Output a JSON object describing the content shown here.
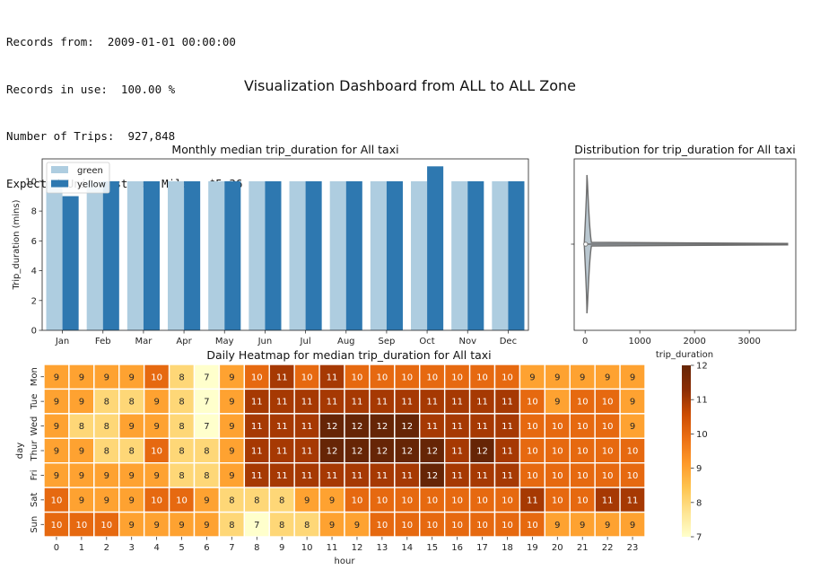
{
  "info": {
    "records_from": "Records from:  2009-01-01 00:00:00",
    "records_in_use": "Records in use:  100.00 %",
    "trips": "Number of Trips:  927,848",
    "unit_cost": "Expected Unit cost per Mile:  $5.36"
  },
  "dashboard_title": "Visualization Dashboard  from ALL to ALL Zone",
  "colors": {
    "green": "#aecde0",
    "yellow": "#2e78b0",
    "violin_fill": "#b9c7d0",
    "violin_edge": "#6d6d6d"
  },
  "chart_data": [
    {
      "type": "bar",
      "title": "Monthly median trip_duration for All taxi",
      "xlabel": "",
      "ylabel": "Trip_duration (mins)",
      "ylim": [
        0,
        11.5
      ],
      "yticks": [
        0,
        2,
        4,
        6,
        8,
        10
      ],
      "legend_position": "upper-left",
      "categories": [
        "Jan",
        "Feb",
        "Mar",
        "Apr",
        "May",
        "Jun",
        "Jul",
        "Aug",
        "Sep",
        "Oct",
        "Nov",
        "Dec"
      ],
      "series": [
        {
          "name": "green",
          "values": [
            10,
            10,
            10,
            10,
            10,
            10,
            10,
            10,
            10,
            10,
            10,
            10
          ]
        },
        {
          "name": "yellow",
          "values": [
            9,
            10,
            10,
            10,
            10,
            10,
            10,
            10,
            10,
            11,
            10,
            10
          ]
        }
      ]
    },
    {
      "type": "violin",
      "title": "Distribution for trip_duration for All taxi",
      "xlabel": "trip_duration",
      "xlim": [
        -200,
        3850
      ],
      "xticks": [
        0,
        1000,
        2000,
        3000
      ],
      "min": 0,
      "median": 10,
      "max": 3700
    },
    {
      "type": "heatmap",
      "title": "Daily Heatmap for median trip_duration for All taxi",
      "xlabel": "hour",
      "ylabel": "day",
      "x": [
        "0",
        "1",
        "2",
        "3",
        "4",
        "5",
        "6",
        "7",
        "8",
        "9",
        "10",
        "11",
        "12",
        "13",
        "14",
        "15",
        "16",
        "17",
        "18",
        "19",
        "20",
        "21",
        "22",
        "23"
      ],
      "y": [
        "Mon",
        "Tue",
        "Wed",
        "Thur",
        "Fri",
        "Sat",
        "Sun"
      ],
      "colorbar": {
        "min": 7,
        "max": 12,
        "ticks": [
          7,
          8,
          9,
          10,
          11,
          12
        ]
      },
      "values": [
        [
          9,
          9,
          9,
          9,
          10,
          8,
          7,
          9,
          10,
          11,
          10,
          11,
          10,
          10,
          10,
          10,
          10,
          10,
          10,
          9,
          9,
          9,
          9,
          9
        ],
        [
          9,
          9,
          8,
          8,
          9,
          8,
          7,
          9,
          11,
          11,
          11,
          11,
          11,
          11,
          11,
          11,
          11,
          11,
          11,
          10,
          9,
          10,
          10,
          9
        ],
        [
          9,
          8,
          8,
          9,
          9,
          8,
          7,
          9,
          11,
          11,
          11,
          12,
          12,
          12,
          12,
          11,
          11,
          11,
          11,
          10,
          10,
          10,
          10,
          9
        ],
        [
          9,
          9,
          8,
          8,
          10,
          8,
          8,
          9,
          11,
          11,
          11,
          12,
          12,
          12,
          12,
          12,
          11,
          12,
          11,
          10,
          10,
          10,
          10,
          10
        ],
        [
          9,
          9,
          9,
          9,
          9,
          8,
          8,
          9,
          11,
          11,
          11,
          11,
          11,
          11,
          11,
          12,
          11,
          11,
          11,
          10,
          10,
          10,
          10,
          10
        ],
        [
          10,
          9,
          9,
          9,
          10,
          10,
          9,
          8,
          8,
          8,
          9,
          9,
          10,
          10,
          10,
          10,
          10,
          10,
          10,
          11,
          10,
          10,
          11,
          11
        ],
        [
          10,
          10,
          10,
          9,
          9,
          9,
          9,
          8,
          7,
          8,
          8,
          9,
          9,
          10,
          10,
          10,
          10,
          10,
          10,
          10,
          9,
          9,
          9,
          9
        ]
      ]
    }
  ]
}
